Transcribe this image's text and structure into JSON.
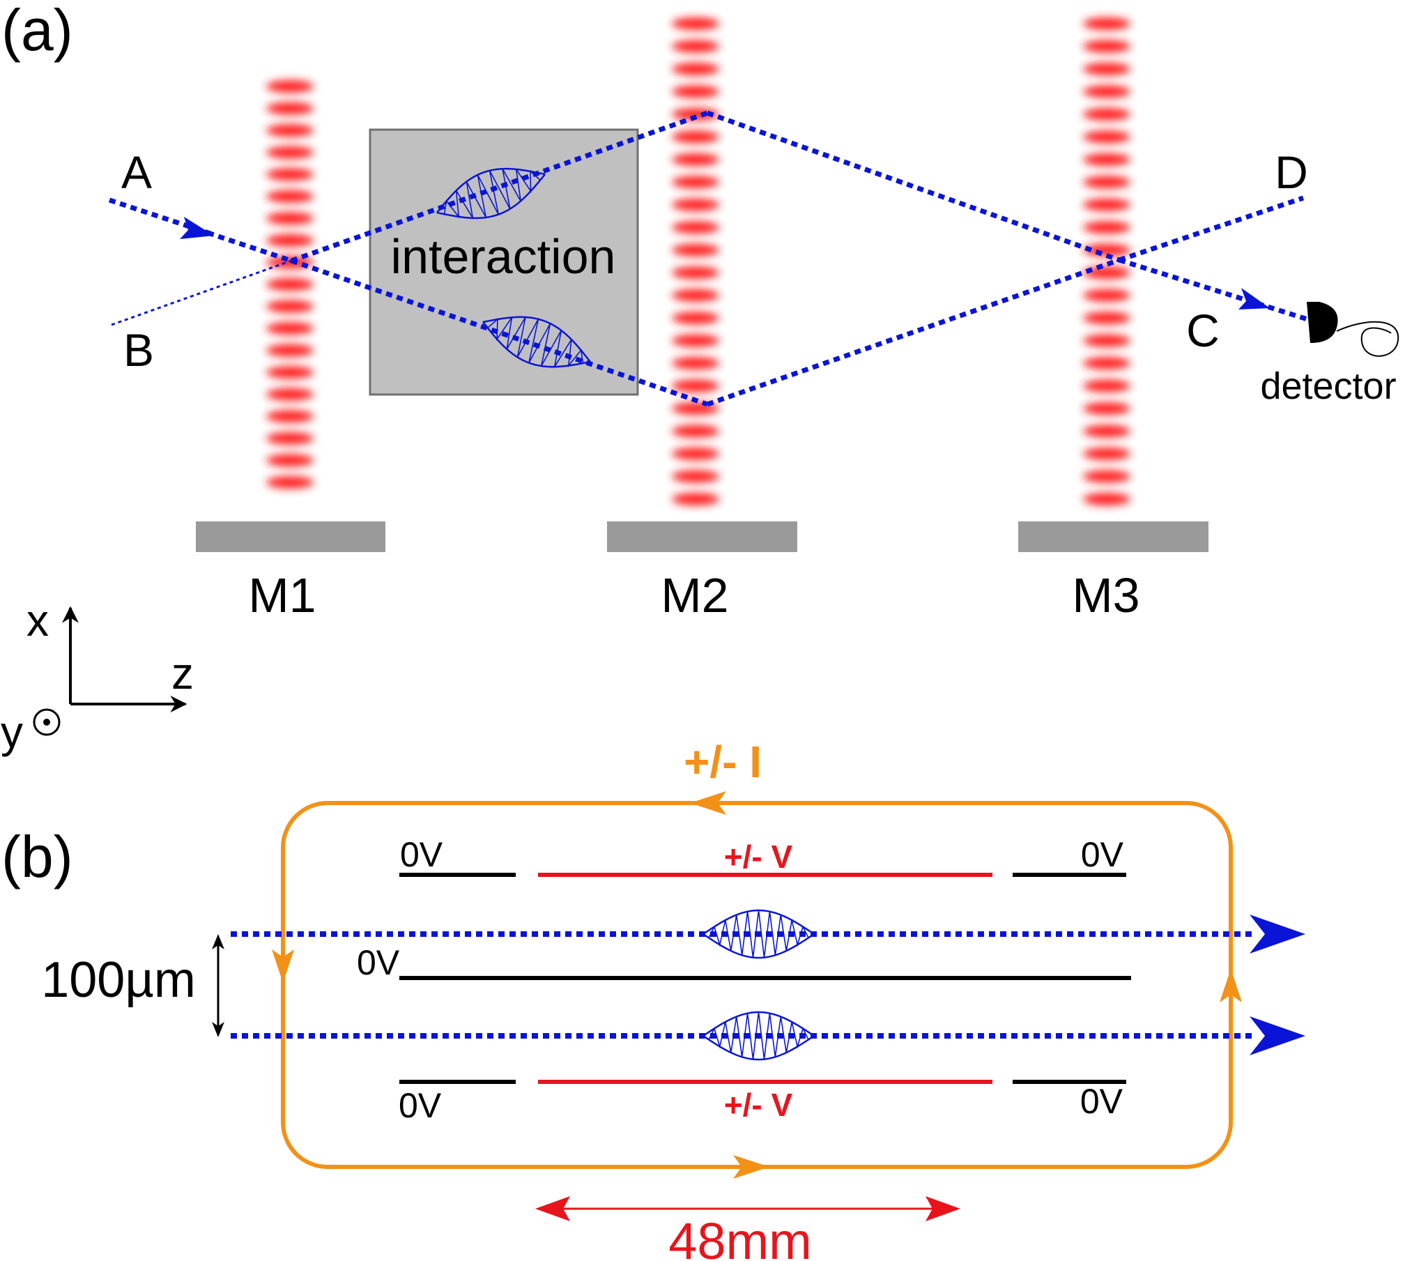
{
  "panel_a": {
    "label": "(a)",
    "beam_labels": {
      "a": "A",
      "b": "B",
      "c": "C",
      "d": "D"
    },
    "interaction_label": "interaction",
    "mirror_labels": [
      "M1",
      "M2",
      "M3"
    ],
    "detector_label": "detector",
    "axes": {
      "x": "x",
      "y": "y",
      "z": "z"
    }
  },
  "panel_b": {
    "label": "(b)",
    "current_label": "+/- I",
    "voltage_label_top": "+/- V",
    "voltage_label_bottom": "+/- V",
    "ground_labels": [
      "0V",
      "0V",
      "0V",
      "0V",
      "0V"
    ],
    "spacing_label": "100µm",
    "length_label": "48mm"
  },
  "colors": {
    "beam": "#0a14d6",
    "laser": "#ff2020",
    "mirror": "#9a9a9a",
    "interaction_box": "#c0c0c0",
    "loop": "#f39117",
    "electrode_hv": "#e8141c",
    "electrode_ground": "#000000",
    "dimension": "#e8141c"
  }
}
